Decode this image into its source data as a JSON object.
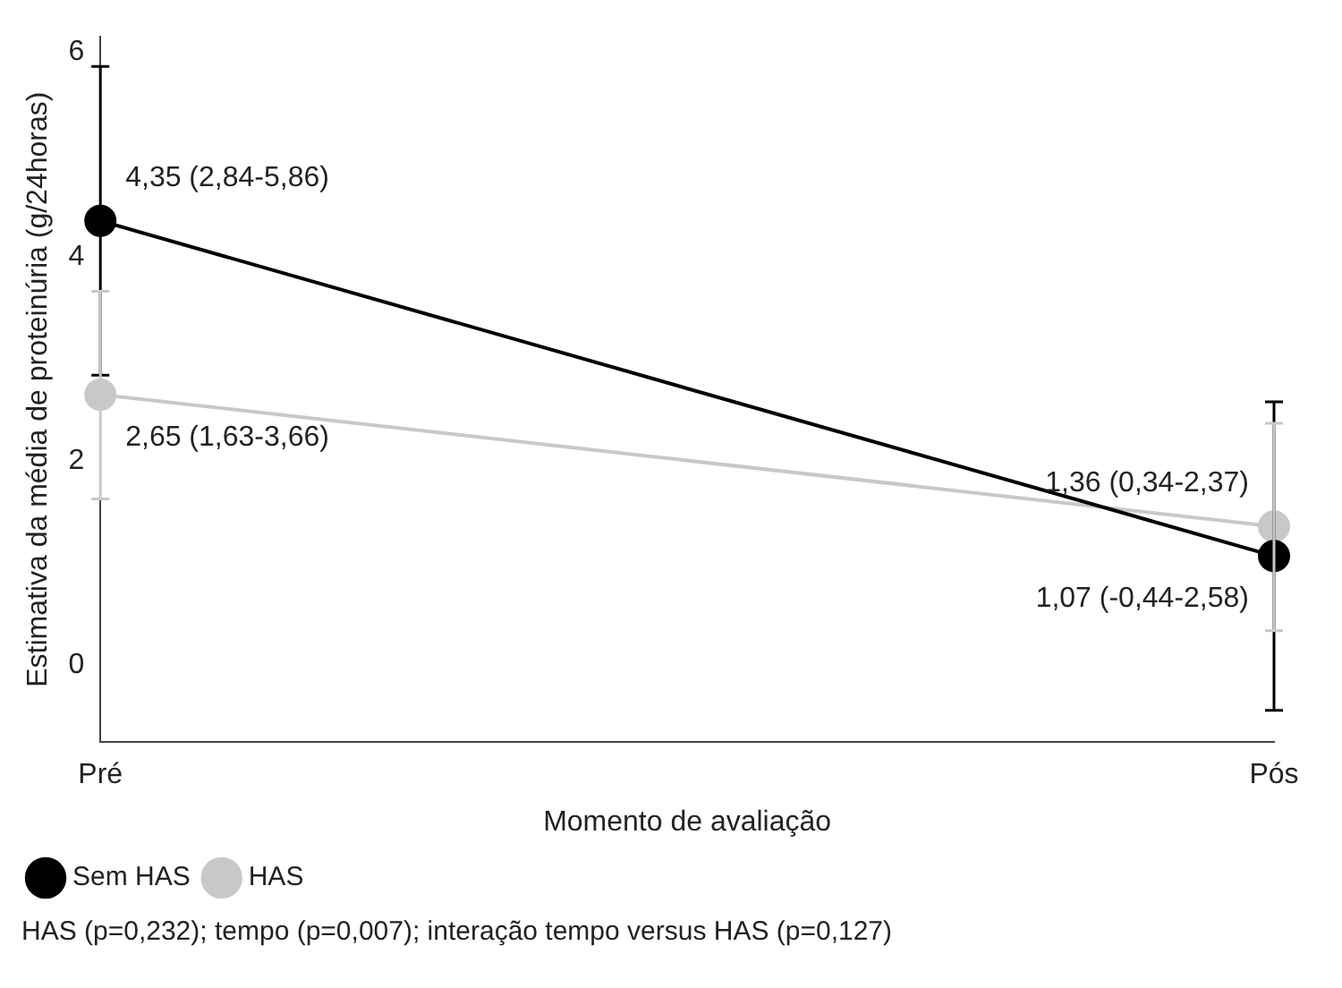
{
  "chart_data": {
    "type": "line",
    "xlabel": "Momento de avaliação",
    "ylabel": "Estimativa da média de proteinúria (g/24horas)",
    "categories": [
      "Pré",
      "Pós"
    ],
    "series": [
      {
        "name": "Sem HAS",
        "color": "#000000",
        "values": [
          4.35,
          1.07
        ],
        "errors": [
          [
            2.84,
            5.86
          ],
          [
            -0.44,
            2.58
          ]
        ],
        "value_labels": [
          "4,35 (2,84-5,86)",
          "1,07 (-0,44-2,58)"
        ]
      },
      {
        "name": "HAS",
        "color": "#c8c8c8",
        "values": [
          2.65,
          1.36
        ],
        "errors": [
          [
            1.63,
            3.66
          ],
          [
            0.34,
            2.37
          ]
        ],
        "value_labels": [
          "2,65 (1,63-3,66)",
          "1,36 (0,34-2,37)"
        ]
      }
    ],
    "ylim": [
      -0.75,
      6.15
    ],
    "yticks": [
      0,
      2,
      4,
      6
    ],
    "grid": false,
    "legend": "bottom left",
    "marker": "circle",
    "line_style": "solid",
    "annotations": [
      "HAS (p=0,232); tempo (p=0,007); interação tempo versus HAS (p=0,127)"
    ]
  }
}
